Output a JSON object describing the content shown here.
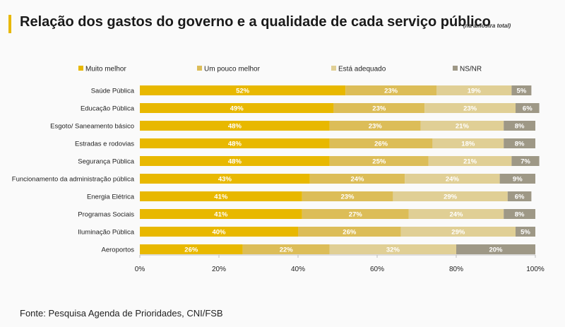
{
  "header": {
    "title": "Relação dos gastos do governo e a qualidade de cada serviço público",
    "subtitle": "(na amostra total)"
  },
  "footer": {
    "source": "Fonte: Pesquisa Agenda de Prioridades, CNI/FSB"
  },
  "colors": {
    "muito_melhor": "#e8b800",
    "um_pouco_melhor": "#dcbd58",
    "esta_adequado": "#e0cf95",
    "ns_nr": "#9e9886"
  },
  "chart_data": {
    "type": "bar",
    "orientation": "horizontal",
    "stacked": true,
    "title": "Relação dos gastos do governo e a qualidade de cada serviço público",
    "subtitle": "(na amostra total)",
    "legend_position": "top",
    "xlim": [
      0,
      100
    ],
    "xticks": [
      "0%",
      "20%",
      "40%",
      "60%",
      "80%",
      "100%"
    ],
    "categories": [
      "Saúde Pública",
      "Educação Pública",
      "Esgoto/ Saneamento básico",
      "Estradas e rodovias",
      "Segurança Pública",
      "Funcionamento da administração pública",
      "Energia Elétrica",
      "Programas Sociais",
      "Iluminação Pública",
      "Aeroportos"
    ],
    "series": [
      {
        "name": "Muito melhor",
        "color": "#e8b800",
        "values": [
          52,
          49,
          48,
          48,
          48,
          43,
          41,
          41,
          40,
          26
        ]
      },
      {
        "name": "Um pouco melhor",
        "color": "#dcbd58",
        "values": [
          23,
          23,
          23,
          26,
          25,
          24,
          23,
          27,
          26,
          22
        ]
      },
      {
        "name": "Está adequado",
        "color": "#e0cf95",
        "values": [
          19,
          23,
          21,
          18,
          21,
          24,
          29,
          24,
          29,
          32
        ]
      },
      {
        "name": "NS/NR",
        "color": "#9e9886",
        "values": [
          5,
          6,
          8,
          8,
          7,
          9,
          6,
          8,
          5,
          20
        ]
      }
    ]
  }
}
